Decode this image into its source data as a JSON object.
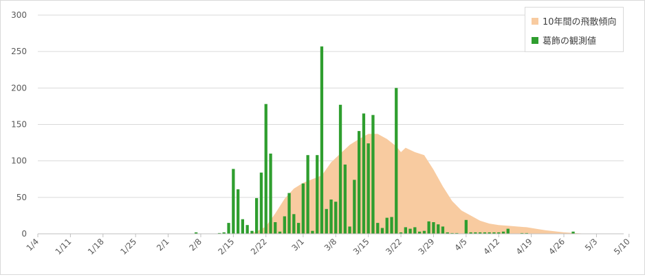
{
  "chart_data": {
    "type": "bar",
    "title": "",
    "xlabel": "",
    "ylabel": "",
    "ylim": [
      0,
      300
    ],
    "yticks": [
      "0",
      "50",
      "100",
      "150",
      "200",
      "250",
      "300"
    ],
    "grid": "horizontal",
    "legend_position": "top-right",
    "x_start": "1/4",
    "x_tick_labels": [
      "1/4",
      "1/11",
      "1/18",
      "1/25",
      "2/1",
      "2/8",
      "2/15",
      "2/22",
      "3/1",
      "3/8",
      "3/15",
      "3/22",
      "3/29",
      "4/5",
      "4/12",
      "4/19",
      "4/26",
      "5/3",
      "5/10"
    ],
    "colors": {
      "trend": "#f8cba0",
      "observed": "#2f9e2f",
      "grid": "#d9d9d9",
      "axis": "#bfbfbf"
    },
    "series": [
      {
        "name": "10年間の飛散傾向",
        "type": "area",
        "dates": [
          "1/4",
          "2/18",
          "2/20",
          "2/22",
          "2/24",
          "2/26",
          "2/28",
          "3/1",
          "3/3",
          "3/5",
          "3/7",
          "3/9",
          "3/11",
          "3/13",
          "3/15",
          "3/17",
          "3/19",
          "3/21",
          "3/22",
          "3/23",
          "3/25",
          "3/27",
          "3/29",
          "3/31",
          "4/2",
          "4/4",
          "4/6",
          "4/8",
          "4/10",
          "4/12",
          "4/14",
          "4/16",
          "4/18",
          "4/20",
          "4/22",
          "4/26",
          "5/1",
          "5/5"
        ],
        "values": [
          0,
          0,
          3,
          10,
          28,
          48,
          62,
          70,
          75,
          80,
          98,
          110,
          122,
          130,
          137,
          137,
          130,
          120,
          112,
          118,
          112,
          108,
          88,
          65,
          45,
          32,
          25,
          18,
          14,
          12,
          11,
          10,
          9,
          7,
          5,
          2,
          0,
          0
        ]
      },
      {
        "name": "葛飾の観測値",
        "type": "bar",
        "dates": [
          "2/7",
          "2/12",
          "2/13",
          "2/14",
          "2/15",
          "2/16",
          "2/17",
          "2/18",
          "2/19",
          "2/20",
          "2/21",
          "2/22",
          "2/23",
          "2/24",
          "2/25",
          "2/26",
          "2/27",
          "2/28",
          "2/29",
          "3/1",
          "3/2",
          "3/3",
          "3/4",
          "3/5",
          "3/6",
          "3/7",
          "3/8",
          "3/9",
          "3/10",
          "3/11",
          "3/12",
          "3/13",
          "3/14",
          "3/15",
          "3/16",
          "3/17",
          "3/18",
          "3/19",
          "3/20",
          "3/21",
          "3/22",
          "3/23",
          "3/24",
          "3/25",
          "3/26",
          "3/27",
          "3/28",
          "3/29",
          "3/30",
          "3/31",
          "4/1",
          "4/2",
          "4/3",
          "4/5",
          "4/6",
          "4/7",
          "4/8",
          "4/9",
          "4/10",
          "4/11",
          "4/12",
          "4/13",
          "4/14",
          "4/17",
          "4/18",
          "4/28"
        ],
        "values": [
          2,
          1,
          2,
          15,
          89,
          61,
          20,
          12,
          4,
          49,
          84,
          178,
          110,
          16,
          3,
          24,
          56,
          27,
          15,
          69,
          108,
          4,
          108,
          257,
          34,
          47,
          44,
          177,
          95,
          10,
          74,
          141,
          165,
          124,
          163,
          15,
          8,
          22,
          23,
          200,
          2,
          9,
          7,
          9,
          3,
          4,
          17,
          16,
          13,
          10,
          2,
          1,
          1,
          19,
          2,
          2,
          2,
          2,
          2,
          2,
          2,
          3,
          7,
          1,
          1,
          3
        ]
      }
    ]
  }
}
